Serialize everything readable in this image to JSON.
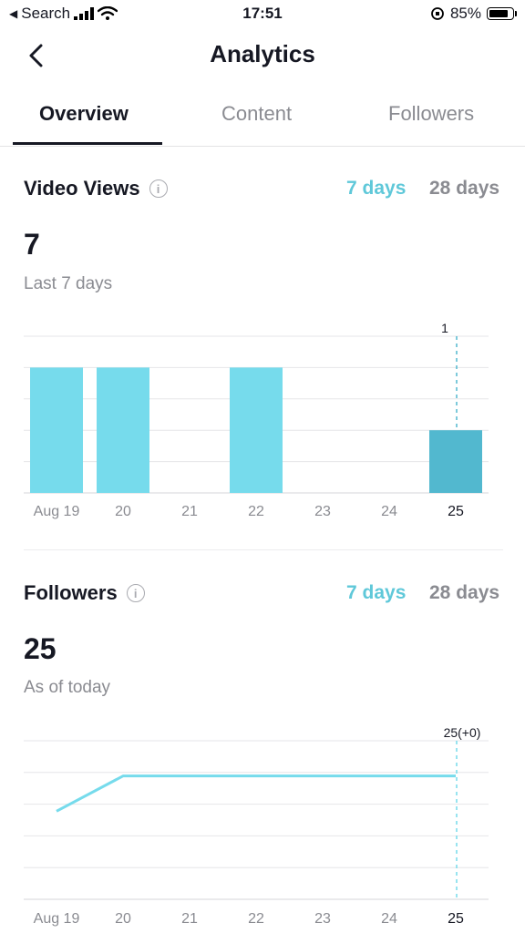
{
  "status_bar": {
    "back_label": "Search",
    "time": "17:51",
    "battery": "85%"
  },
  "nav": {
    "title": "Analytics"
  },
  "tabs": [
    {
      "label": "Overview"
    },
    {
      "label": "Content"
    },
    {
      "label": "Followers"
    }
  ],
  "video_views": {
    "title": "Video Views",
    "range_7": "7 days",
    "range_28": "28 days",
    "value": "7",
    "subtitle": "Last 7 days"
  },
  "followers": {
    "title": "Followers",
    "range_7": "7 days",
    "range_28": "28 days",
    "value": "25",
    "subtitle": "As of today"
  },
  "chart_data": [
    {
      "type": "bar",
      "categories": [
        "Aug 19",
        "20",
        "21",
        "22",
        "23",
        "24",
        "25"
      ],
      "values": [
        2,
        2,
        0,
        2,
        0,
        0,
        1
      ],
      "ylim": [
        0,
        2.5
      ],
      "highlight_index": 6,
      "highlight_label": "1",
      "grid": true,
      "colors": {
        "bar": "#76dbec",
        "highlight": "#52b8cf"
      }
    },
    {
      "type": "line",
      "categories": [
        "Aug 19",
        "20",
        "21",
        "22",
        "23",
        "24",
        "25"
      ],
      "values": [
        24,
        25,
        25,
        25,
        25,
        25,
        25
      ],
      "ylim": [
        21.5,
        26
      ],
      "highlight_index": 6,
      "highlight_label": "25(+0)",
      "grid": true,
      "colors": {
        "line": "#76dbec"
      }
    }
  ]
}
